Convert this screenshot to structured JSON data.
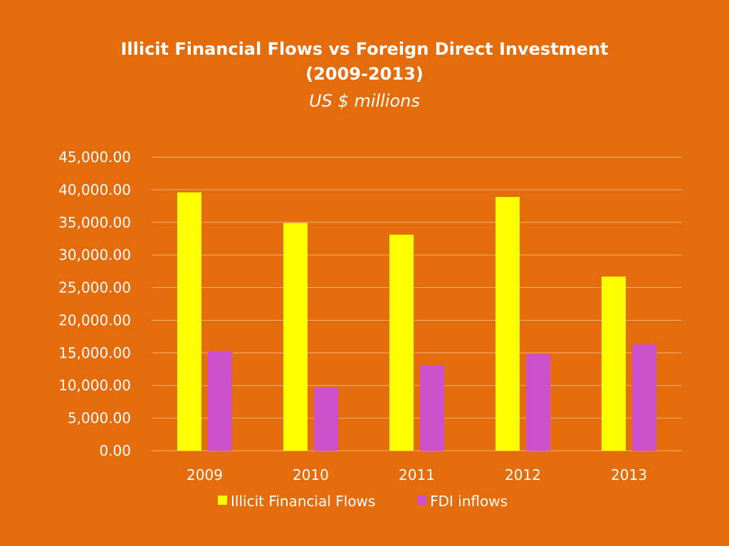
{
  "colors": {
    "background": "#E46C0A",
    "gridline": "#F2B27A",
    "text": "#ffffff"
  },
  "chart_data": {
    "type": "bar",
    "title_line1": "Illicit Financial Flows vs Foreign Direct Investment",
    "title_line2": "(2009-2013)",
    "subtitle": "US $ millions",
    "categories": [
      "2009",
      "2010",
      "2011",
      "2012",
      "2013"
    ],
    "series": [
      {
        "name": "Illicit Financial Flows",
        "color": "#FFFF00",
        "values": [
          39600,
          34900,
          33100,
          38900,
          26700
        ]
      },
      {
        "name": "FDI inflows",
        "color": "#CC4FCC",
        "values": [
          15300,
          9700,
          13100,
          14800,
          16300
        ]
      }
    ],
    "ylim": [
      0,
      45000
    ],
    "ytick_step": 5000,
    "ytick_labels": [
      "0.00",
      "5,000.00",
      "10,000.00",
      "15,000.00",
      "20,000.00",
      "25,000.00",
      "30,000.00",
      "35,000.00",
      "40,000.00",
      "45,000.00"
    ],
    "grid": true,
    "legend_position": "bottom"
  }
}
